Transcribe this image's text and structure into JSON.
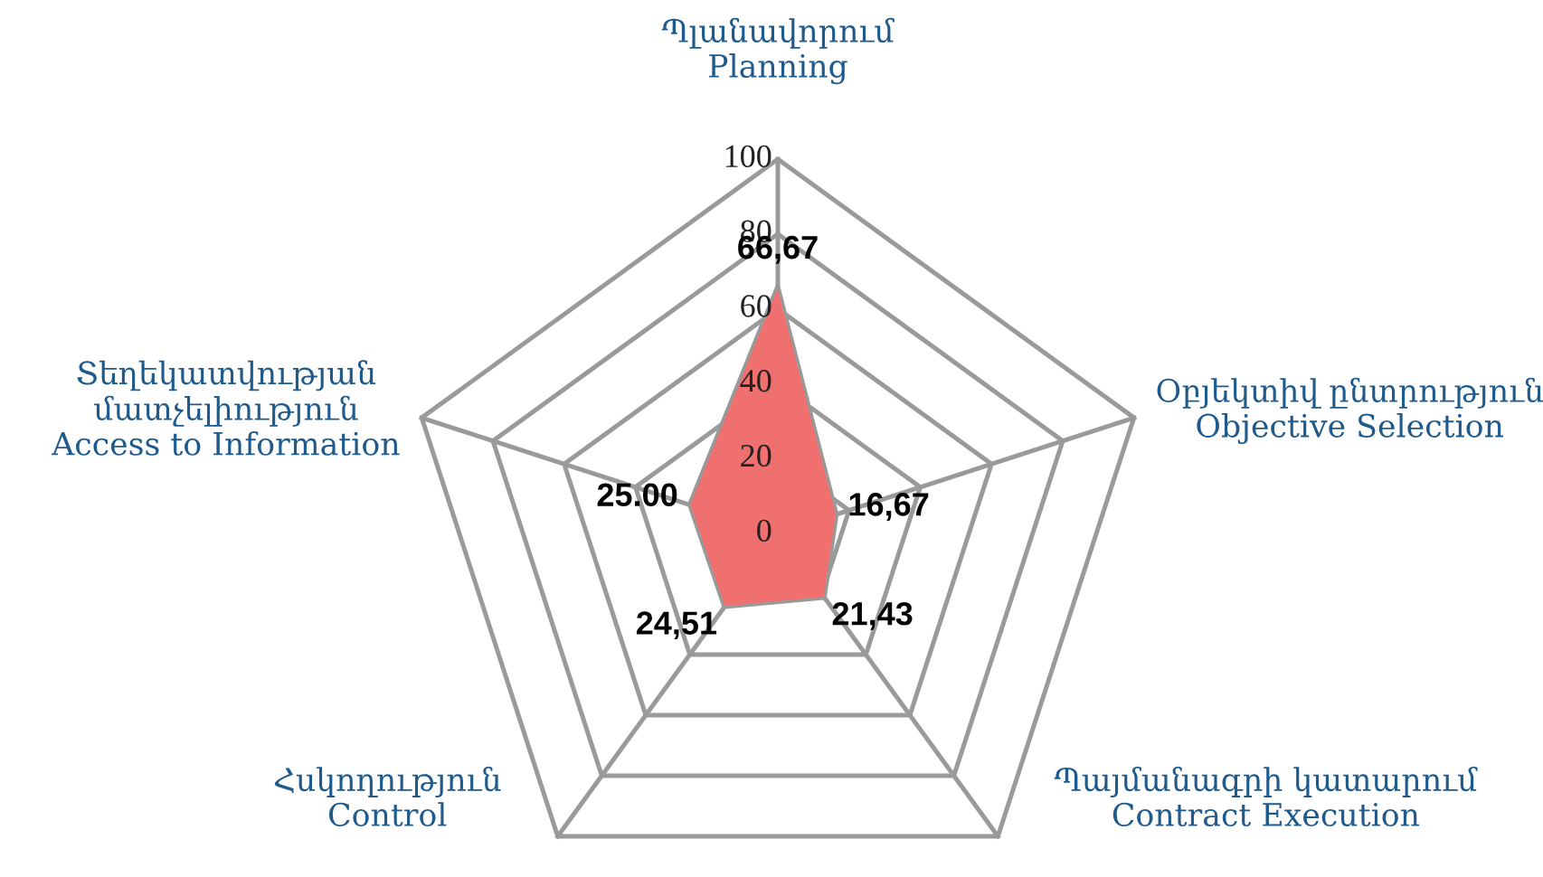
{
  "chart_data": {
    "type": "radar",
    "categories": [
      "Պլանավորում\nPlanning",
      "Օբյեկտիվ ընտրություն\nObjective Selection",
      "Պայմանագրի կատարում\nContract Execution",
      "Հսկողություն\nControl",
      "Տեղեկատվության\nմատչելիություն\nAccess to Information"
    ],
    "series": [
      {
        "color": "#f07070",
        "values": [
          66.67,
          16.67,
          21.43,
          24.51,
          25.0
        ],
        "value_labels": [
          "66,67",
          "16,67",
          "21,43",
          "24,51",
          "25.00"
        ]
      }
    ],
    "ylim": [
      0,
      100
    ],
    "yticks": [
      0,
      20,
      40,
      60,
      80,
      100
    ],
    "grid": true
  }
}
